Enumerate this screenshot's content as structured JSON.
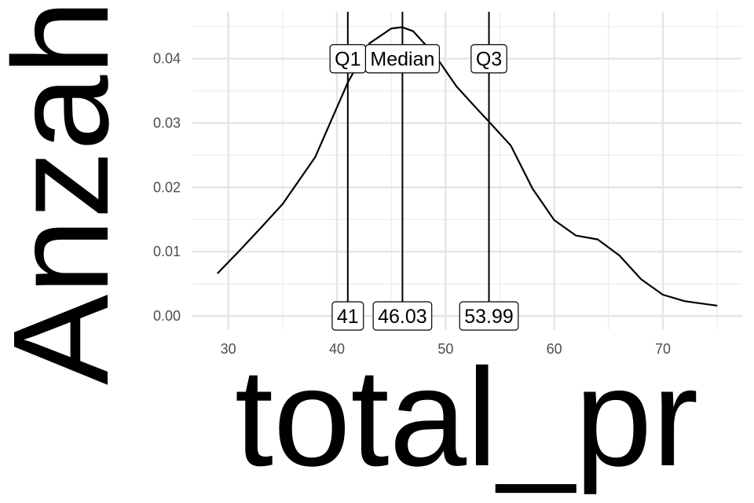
{
  "chart_data": {
    "type": "density",
    "x_label": "total_pr",
    "y_label": "Anzahl",
    "xlim": [
      26.7,
      77.3
    ],
    "ylim": [
      -0.0022,
      0.0473
    ],
    "xticks": [
      30,
      40,
      50,
      60,
      70
    ],
    "yticks": [
      {
        "value": 0,
        "label": "0.00"
      },
      {
        "value": 0.01,
        "label": "0.01"
      },
      {
        "value": 0.02,
        "label": "0.02"
      },
      {
        "value": 0.03,
        "label": "0.03"
      },
      {
        "value": 0.04,
        "label": "0.04"
      }
    ],
    "x_minor_breaks": [
      35,
      45,
      55,
      65,
      75
    ],
    "y_minor_breaks": [
      0.005,
      0.015,
      0.025,
      0.035,
      0.045
    ],
    "grid": true,
    "series": [
      {
        "color": "#000000",
        "x": [
          29,
          31,
          33,
          35,
          38,
          41,
          43,
          45,
          46,
          47,
          49,
          51,
          53,
          54,
          56,
          58,
          60,
          62,
          64,
          66,
          68,
          70,
          72,
          75
        ],
        "values": [
          0.0066,
          0.0101,
          0.0137,
          0.0174,
          0.0247,
          0.0363,
          0.0424,
          0.0447,
          0.0449,
          0.0443,
          0.0406,
          0.0357,
          0.032,
          0.0302,
          0.0265,
          0.0198,
          0.0149,
          0.0125,
          0.0119,
          0.0094,
          0.0057,
          0.0033,
          0.0023,
          0.0016
        ]
      }
    ],
    "vlines": [
      {
        "name": "Q1",
        "value": 41,
        "value_label": "41"
      },
      {
        "name": "Median",
        "value": 46.03,
        "value_label": "46.03"
      },
      {
        "name": "Q3",
        "value": 53.99,
        "value_label": "53.99"
      }
    ],
    "label_y_top": 0.04,
    "label_y_bottom": 0
  }
}
